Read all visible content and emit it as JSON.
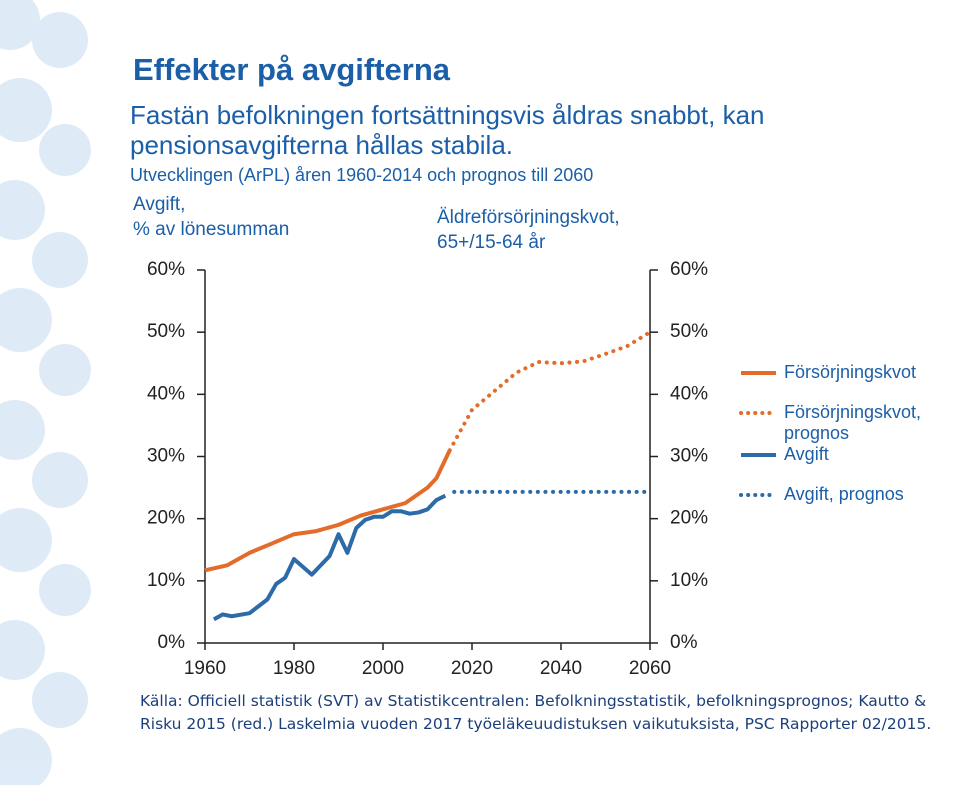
{
  "title": "Effekter på avgifterna",
  "subtitle": "Fastän befolkningen fortsättningsvis åldras snabbt, kan pensionsavgifterna hållas stabila.",
  "source": "Källa: Officiell statistik (SVT) av Statistikcentralen: Befolkningsstatistik, befolkningsprognos; Kautto & Risku 2015 (red.) Laskelmia vuoden 2017 työeläkeuudistuksen vaikutuksista, PSC Rapporter 02/2015.",
  "chart_data": {
    "type": "line",
    "title": "Utvecklingen (ArPL) åren 1960-2014 och prognos till 2060",
    "ylabel": [
      "Avgift,",
      "% av lönesumman"
    ],
    "y2label": [
      "Äldreförsörjningskvot,",
      "65+/15-64 år"
    ],
    "xlim": [
      1960,
      2060
    ],
    "xticks": [
      1960,
      1980,
      2000,
      2020,
      2040,
      2060
    ],
    "ylim": [
      0,
      60
    ],
    "yticks": [
      {
        "value": 0,
        "label": "0%"
      },
      {
        "value": 10,
        "label": "10%"
      },
      {
        "value": 20,
        "label": "20%"
      },
      {
        "value": 30,
        "label": "30%"
      },
      {
        "value": 40,
        "label": "40%"
      },
      {
        "value": 50,
        "label": "50%"
      },
      {
        "value": 60,
        "label": "60%"
      }
    ],
    "y2lim": [
      0,
      60
    ],
    "y2ticks": [
      {
        "value": 0,
        "label": "0%"
      },
      {
        "value": 10,
        "label": "10%"
      },
      {
        "value": 20,
        "label": "20%"
      },
      {
        "value": 30,
        "label": "30%"
      },
      {
        "value": 40,
        "label": "40%"
      },
      {
        "value": 50,
        "label": "50%"
      },
      {
        "value": 60,
        "label": "60%"
      }
    ],
    "series": [
      {
        "name": "Försörjningskvot",
        "color": "#e36c2a",
        "style": "solid",
        "axis": "y2",
        "x": [
          1960,
          1965,
          1970,
          1975,
          1980,
          1985,
          1990,
          1995,
          2000,
          2005,
          2010,
          2012,
          2015
        ],
        "values": [
          11.7,
          12.5,
          14.5,
          16,
          17.5,
          18,
          19,
          20.5,
          21.5,
          22.5,
          25,
          26.5,
          31
        ]
      },
      {
        "name": "Försörjningskvot, prognos",
        "color": "#e36c2a",
        "style": "dotted",
        "axis": "y2",
        "x": [
          2015,
          2020,
          2025,
          2030,
          2035,
          2040,
          2045,
          2050,
          2055,
          2060
        ],
        "values": [
          31,
          37.5,
          40.5,
          43.5,
          45.2,
          45,
          45.3,
          46.5,
          47.8,
          50
        ]
      },
      {
        "name": "Avgift",
        "color": "#2d6aa8",
        "style": "solid",
        "x": [
          1962,
          1964,
          1966,
          1970,
          1974,
          1976,
          1978,
          1980,
          1984,
          1988,
          1990,
          1992,
          1994,
          1996,
          1998,
          2000,
          2002,
          2004,
          2006,
          2008,
          2010,
          2012,
          2014
        ],
        "values": [
          3.8,
          4.6,
          4.3,
          4.8,
          7,
          9.5,
          10.5,
          13.5,
          11,
          14,
          17.5,
          14.5,
          18.5,
          19.8,
          20.3,
          20.3,
          21.2,
          21.2,
          20.8,
          21,
          21.5,
          23,
          23.7
        ]
      },
      {
        "name": "Avgift, prognos",
        "color": "#2d6aa8",
        "style": "dotted",
        "x": [
          2016,
          2020,
          2030,
          2040,
          2050,
          2060
        ],
        "values": [
          24.3,
          24.3,
          24.3,
          24.3,
          24.3,
          24.3
        ]
      }
    ]
  }
}
